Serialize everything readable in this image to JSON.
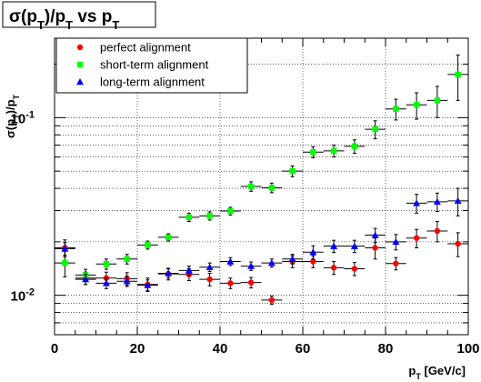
{
  "chart_data": {
    "type": "scatter",
    "title": "σ(p_T)/p_T vs p_T",
    "xlabel": "p_T [GeV/c]",
    "ylabel": "σ(p_T)/p_T",
    "xlim": [
      0,
      100
    ],
    "ylim": [
      0.006,
      0.28
    ],
    "yscale": "log",
    "xticks": [
      0,
      20,
      40,
      60,
      80,
      100
    ],
    "yticks": [
      {
        "value": 0.01,
        "base": "10",
        "exp": "-2"
      },
      {
        "value": 0.1,
        "base": "10",
        "exp": "-1"
      }
    ],
    "grid": true,
    "legend_position": "top-left",
    "x_error": 2.5,
    "series": [
      {
        "name": "perfect alignment",
        "color": "#ff0000",
        "marker": "circle",
        "x": [
          2.5,
          7.5,
          12.5,
          17.5,
          22.5,
          27.5,
          32.5,
          37.5,
          42.5,
          47.5,
          52.5,
          57.5,
          62.5,
          67.5,
          72.5,
          77.5,
          82.5,
          87.5,
          92.5,
          97.5
        ],
        "y": [
          0.0185,
          0.0125,
          0.0125,
          0.0124,
          0.0115,
          0.0132,
          0.0131,
          0.0123,
          0.0117,
          0.0118,
          0.0094,
          0.0155,
          0.0155,
          0.0143,
          0.0141,
          0.0185,
          0.0151,
          0.021,
          0.023,
          0.0195
        ],
        "err": [
          0.002,
          0.001,
          0.001,
          0.001,
          0.001,
          0.001,
          0.001,
          0.001,
          0.0008,
          0.0008,
          0.0005,
          0.0012,
          0.0012,
          0.0012,
          0.0012,
          0.0025,
          0.0012,
          0.0025,
          0.003,
          0.003
        ]
      },
      {
        "name": "short-term alignment",
        "color": "#00ff00",
        "marker": "square",
        "x": [
          2.5,
          7.5,
          12.5,
          17.5,
          22.5,
          27.5,
          32.5,
          37.5,
          42.5,
          47.5,
          52.5,
          57.5,
          62.5,
          67.5,
          72.5,
          77.5,
          82.5,
          87.5,
          92.5,
          97.5
        ],
        "y": [
          0.0152,
          0.013,
          0.015,
          0.016,
          0.0192,
          0.0212,
          0.0275,
          0.028,
          0.0298,
          0.041,
          0.0403,
          0.05,
          0.064,
          0.065,
          0.069,
          0.086,
          0.112,
          0.118,
          0.125,
          0.175
        ],
        "err": [
          0.0025,
          0.001,
          0.001,
          0.001,
          0.001,
          0.001,
          0.0015,
          0.0015,
          0.0015,
          0.0025,
          0.0025,
          0.0035,
          0.0045,
          0.005,
          0.006,
          0.01,
          0.015,
          0.02,
          0.025,
          0.05
        ]
      },
      {
        "name": "long-term  alignment",
        "color": "#0000ff",
        "marker": "triangle",
        "x": [
          2.5,
          7.5,
          12.5,
          17.5,
          22.5,
          27.5,
          32.5,
          37.5,
          42.5,
          47.5,
          52.5,
          57.5,
          62.5,
          67.5,
          72.5,
          77.5,
          82.5,
          87.5,
          92.5,
          97.5
        ],
        "y": [
          0.0183,
          0.0123,
          0.0117,
          0.012,
          0.0114,
          0.0133,
          0.0138,
          0.0144,
          0.0155,
          0.0146,
          0.0152,
          0.016,
          0.0175,
          0.0189,
          0.0189,
          0.0218,
          0.02,
          0.033,
          0.0336,
          0.034
        ],
        "err": [
          0.0015,
          0.0008,
          0.0008,
          0.0008,
          0.0008,
          0.0008,
          0.0008,
          0.0008,
          0.0008,
          0.0008,
          0.0008,
          0.001,
          0.0015,
          0.0015,
          0.0015,
          0.002,
          0.002,
          0.004,
          0.004,
          0.006
        ]
      }
    ]
  }
}
